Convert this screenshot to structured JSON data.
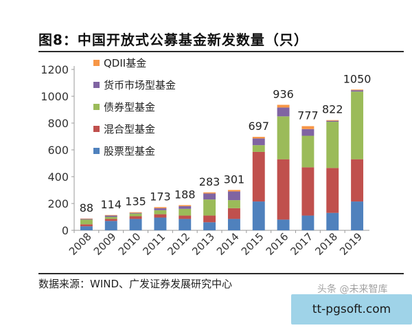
{
  "header": {
    "title": "图8：中国开放式公募基金新发数量（只）"
  },
  "footer": {
    "source": "数据来源：WIND、广发证券发展研究中心",
    "watermark": "头条 @未来智库",
    "url": "tt-pgsoft.com"
  },
  "chart_data": {
    "type": "bar",
    "stacked": true,
    "title": "图8：中国开放式公募基金新发数量（只）",
    "xlabel": "",
    "ylabel": "",
    "ylim": [
      0,
      1200
    ],
    "yticks": [
      0,
      200,
      400,
      600,
      800,
      1000,
      1200
    ],
    "grid": false,
    "legend_position": "top-left",
    "categories": [
      "2008",
      "2009",
      "2010",
      "2011",
      "2012",
      "2013",
      "2014",
      "2015",
      "2016",
      "2017",
      "2018",
      "2019"
    ],
    "totals": [
      88,
      114,
      135,
      173,
      188,
      283,
      301,
      697,
      936,
      777,
      822,
      1050
    ],
    "series": [
      {
        "name": "股票型基金",
        "color": "#4f81bd",
        "values": [
          30,
          70,
          85,
          95,
          85,
          60,
          85,
          215,
          80,
          110,
          130,
          215
        ]
      },
      {
        "name": "混合型基金",
        "color": "#c0504d",
        "values": [
          15,
          15,
          20,
          25,
          25,
          50,
          80,
          370,
          450,
          360,
          335,
          315
        ]
      },
      {
        "name": "债券型基金",
        "color": "#9bbb59",
        "values": [
          35,
          15,
          20,
          30,
          50,
          120,
          60,
          50,
          320,
          235,
          345,
          505
        ]
      },
      {
        "name": "货币市场型基金",
        "color": "#8064a2",
        "values": [
          5,
          10,
          5,
          15,
          20,
          45,
          65,
          50,
          66,
          50,
          7,
          10
        ]
      },
      {
        "name": "QDII基金",
        "color": "#f79646",
        "values": [
          3,
          4,
          5,
          8,
          8,
          8,
          11,
          12,
          20,
          22,
          5,
          5
        ]
      }
    ]
  }
}
